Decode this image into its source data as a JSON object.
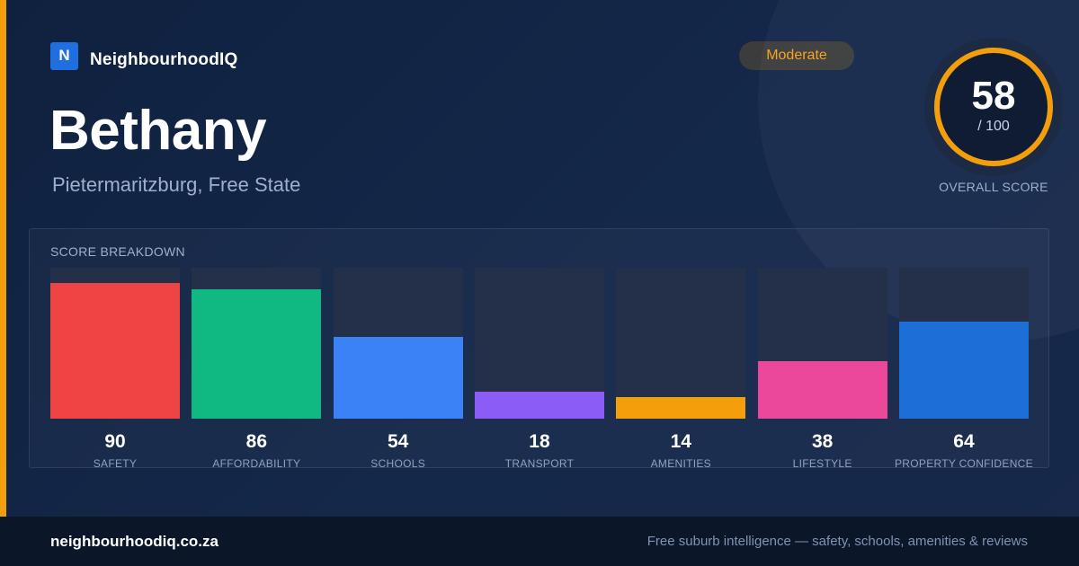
{
  "brand": {
    "logo_letter": "N",
    "name": "NeighbourhoodIQ"
  },
  "suburb": {
    "name": "Bethany",
    "location": "Pietermaritzburg, Free State"
  },
  "rating": {
    "badge": "Moderate",
    "color": "#f5a524"
  },
  "overall": {
    "score": "58",
    "max_label": "/ 100",
    "label": "OVERALL SCORE",
    "score_fraction": 0.58,
    "ring_color": "#f59e0b"
  },
  "breakdown": {
    "heading": "SCORE BREAKDOWN",
    "max": 100,
    "items": [
      {
        "label": "SAFETY",
        "value": 90,
        "color": "#ef4444"
      },
      {
        "label": "AFFORDABILITY",
        "value": 86,
        "color": "#10b981"
      },
      {
        "label": "SCHOOLS",
        "value": 54,
        "color": "#3b82f6"
      },
      {
        "label": "TRANSPORT",
        "value": 18,
        "color": "#8b5cf6"
      },
      {
        "label": "AMENITIES",
        "value": 14,
        "color": "#f59e0b"
      },
      {
        "label": "LIFESTYLE",
        "value": 38,
        "color": "#ec4899"
      },
      {
        "label": "PROPERTY CONFIDENCE",
        "value": 64,
        "color": "#1d6fd8"
      }
    ]
  },
  "footer": {
    "domain": "neighbourhoodiq.co.za",
    "tagline": "Free suburb intelligence — safety, schools, amenities & reviews"
  }
}
